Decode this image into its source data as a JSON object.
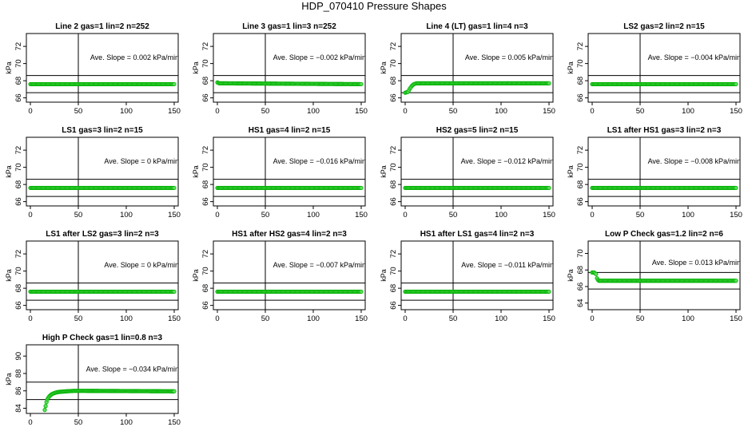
{
  "figure": {
    "title": "HDP_070410  Pressure Shapes"
  },
  "chart_data": [
    {
      "type": "scatter",
      "title": "Line 2 gas=1 lin=2 n=252",
      "ylabel": "kPa",
      "xlim": [
        0,
        150
      ],
      "ylim": [
        65.5,
        73.5
      ],
      "xticks": [
        0,
        50,
        100,
        150
      ],
      "yticks": [
        66,
        68,
        70,
        72
      ],
      "hlines": [
        68.6,
        66.6
      ],
      "vline": 50,
      "annotation": {
        "label": "Ave. Slope =",
        "value": "0.002",
        "unit": "kPa/min",
        "y": 70.7
      },
      "x": [
        0,
        150
      ],
      "y": [
        67.6,
        67.6
      ]
    },
    {
      "type": "scatter",
      "title": "Line 3 gas=1 lin=3 n=252",
      "ylabel": "kPa",
      "xlim": [
        0,
        150
      ],
      "ylim": [
        65.5,
        73.5
      ],
      "xticks": [
        0,
        50,
        100,
        150
      ],
      "yticks": [
        66,
        68,
        70,
        72
      ],
      "hlines": [
        68.6,
        66.6
      ],
      "vline": 50,
      "annotation": {
        "label": "Ave. Slope =",
        "value": "−0.002",
        "unit": "kPa/min",
        "y": 70.7
      },
      "x": [
        0,
        2,
        150
      ],
      "y": [
        67.8,
        67.7,
        67.6
      ]
    },
    {
      "type": "scatter",
      "title": "Line 4 (LT) gas=1 lin=4 n=3",
      "ylabel": "kPa",
      "xlim": [
        0,
        150
      ],
      "ylim": [
        65.5,
        73.5
      ],
      "xticks": [
        0,
        50,
        100,
        150
      ],
      "yticks": [
        66,
        68,
        70,
        72
      ],
      "hlines": [
        68.6,
        66.6
      ],
      "vline": 50,
      "annotation": {
        "label": "Ave. Slope =",
        "value": "0.005",
        "unit": "kPa/min",
        "y": 70.7
      },
      "x": [
        0,
        3,
        5,
        7,
        9,
        12,
        20,
        150
      ],
      "y": [
        66.6,
        66.7,
        67.1,
        67.4,
        67.6,
        67.7,
        67.7,
        67.7
      ]
    },
    {
      "type": "scatter",
      "title": "LS2 gas=2 lin=2 n=15",
      "ylabel": "kPa",
      "xlim": [
        0,
        150
      ],
      "ylim": [
        65.5,
        73.5
      ],
      "xticks": [
        0,
        50,
        100,
        150
      ],
      "yticks": [
        66,
        68,
        70,
        72
      ],
      "hlines": [
        68.6,
        66.6
      ],
      "vline": 50,
      "annotation": {
        "label": "Ave. Slope =",
        "value": "−0.004",
        "unit": "kPa/min",
        "y": 70.7
      },
      "x": [
        0,
        150
      ],
      "y": [
        67.6,
        67.6
      ]
    },
    {
      "type": "scatter",
      "title": "LS1 gas=3 lin=2 n=15",
      "ylabel": "kPa",
      "xlim": [
        0,
        150
      ],
      "ylim": [
        65.5,
        73.5
      ],
      "xticks": [
        0,
        50,
        100,
        150
      ],
      "yticks": [
        66,
        68,
        70,
        72
      ],
      "hlines": [
        68.6,
        66.6
      ],
      "vline": 50,
      "annotation": {
        "label": "Ave. Slope =",
        "value": "0",
        "unit": "kPa/min",
        "y": 70.7
      },
      "x": [
        0,
        150
      ],
      "y": [
        67.6,
        67.6
      ]
    },
    {
      "type": "scatter",
      "title": "HS1 gas=4 lin=2 n=15",
      "ylabel": "kPa",
      "xlim": [
        0,
        150
      ],
      "ylim": [
        65.5,
        73.5
      ],
      "xticks": [
        0,
        50,
        100,
        150
      ],
      "yticks": [
        66,
        68,
        70,
        72
      ],
      "hlines": [
        68.6,
        66.6
      ],
      "vline": 50,
      "annotation": {
        "label": "Ave. Slope =",
        "value": "−0.016",
        "unit": "kPa/min",
        "y": 70.7
      },
      "x": [
        0,
        150
      ],
      "y": [
        67.6,
        67.6
      ]
    },
    {
      "type": "scatter",
      "title": "HS2 gas=5 lin=2 n=15",
      "ylabel": "kPa",
      "xlim": [
        0,
        150
      ],
      "ylim": [
        65.5,
        73.5
      ],
      "xticks": [
        0,
        50,
        100,
        150
      ],
      "yticks": [
        66,
        68,
        70,
        72
      ],
      "hlines": [
        68.6,
        66.6
      ],
      "vline": 50,
      "annotation": {
        "label": "Ave. Slope =",
        "value": "−0.012",
        "unit": "kPa/min",
        "y": 70.7
      },
      "x": [
        0,
        150
      ],
      "y": [
        67.6,
        67.6
      ]
    },
    {
      "type": "scatter",
      "title": "LS1 after HS1 gas=3 lin=2 n=3",
      "ylabel": "kPa",
      "xlim": [
        0,
        150
      ],
      "ylim": [
        65.5,
        73.5
      ],
      "xticks": [
        0,
        50,
        100,
        150
      ],
      "yticks": [
        66,
        68,
        70,
        72
      ],
      "hlines": [
        68.6,
        66.6
      ],
      "vline": 50,
      "annotation": {
        "label": "Ave. Slope =",
        "value": "−0.008",
        "unit": "kPa/min",
        "y": 70.7
      },
      "x": [
        0,
        150
      ],
      "y": [
        67.6,
        67.6
      ]
    },
    {
      "type": "scatter",
      "title": "LS1 after LS2 gas=3 lin=2 n=3",
      "ylabel": "kPa",
      "xlim": [
        0,
        150
      ],
      "ylim": [
        65.5,
        73.5
      ],
      "xticks": [
        0,
        50,
        100,
        150
      ],
      "yticks": [
        66,
        68,
        70,
        72
      ],
      "hlines": [
        68.6,
        66.6
      ],
      "vline": 50,
      "annotation": {
        "label": "Ave. Slope =",
        "value": "0",
        "unit": "kPa/min",
        "y": 70.7
      },
      "x": [
        0,
        150
      ],
      "y": [
        67.6,
        67.6
      ]
    },
    {
      "type": "scatter",
      "title": "HS1 after HS2 gas=4 lin=2 n=3",
      "ylabel": "kPa",
      "xlim": [
        0,
        150
      ],
      "ylim": [
        65.5,
        73.5
      ],
      "xticks": [
        0,
        50,
        100,
        150
      ],
      "yticks": [
        66,
        68,
        70,
        72
      ],
      "hlines": [
        68.6,
        66.6
      ],
      "vline": 50,
      "annotation": {
        "label": "Ave. Slope =",
        "value": "−0.007",
        "unit": "kPa/min",
        "y": 70.7
      },
      "x": [
        0,
        150
      ],
      "y": [
        67.6,
        67.6
      ]
    },
    {
      "type": "scatter",
      "title": "HS1 after LS1 gas=4 lin=2 n=3",
      "ylabel": "kPa",
      "xlim": [
        0,
        150
      ],
      "ylim": [
        65.5,
        73.5
      ],
      "xticks": [
        0,
        50,
        100,
        150
      ],
      "yticks": [
        66,
        68,
        70,
        72
      ],
      "hlines": [
        68.6,
        66.6
      ],
      "vline": 50,
      "annotation": {
        "label": "Ave. Slope =",
        "value": "−0.011",
        "unit": "kPa/min",
        "y": 70.7
      },
      "x": [
        0,
        150
      ],
      "y": [
        67.6,
        67.6
      ]
    },
    {
      "type": "scatter",
      "title": "Low P Check gas=1.2 lin=2 n=6",
      "ylabel": "kPa",
      "xlim": [
        0,
        150
      ],
      "ylim": [
        63.2,
        71.5
      ],
      "xticks": [
        0,
        50,
        100,
        150
      ],
      "yticks": [
        64,
        66,
        68,
        70
      ],
      "hlines": [
        67.7,
        65.7
      ],
      "vline": 50,
      "annotation": {
        "label": "Ave. Slope =",
        "value": "0.013",
        "unit": "kPa/min",
        "y": 68.9
      },
      "x": [
        0,
        2,
        4,
        5,
        6,
        7,
        8,
        10,
        150
      ],
      "y": [
        67.7,
        67.7,
        67.5,
        67.0,
        66.8,
        66.7,
        66.7,
        66.7,
        66.7
      ]
    },
    {
      "type": "scatter",
      "title": "High P Check gas=1 lin=0.8 n=3",
      "ylabel": "kPa",
      "xlim": [
        0,
        150
      ],
      "ylim": [
        83.4,
        91.3
      ],
      "xticks": [
        0,
        50,
        100,
        150
      ],
      "yticks": [
        84,
        86,
        88,
        90
      ],
      "hlines": [
        87.0,
        85.0
      ],
      "vline": 50,
      "annotation": {
        "label": "Ave. Slope =",
        "value": "−0.034",
        "unit": "kPa/min",
        "y": 88.5
      },
      "x": [
        15,
        16,
        17,
        18,
        20,
        22,
        25,
        28,
        32,
        38,
        45,
        55,
        150
      ],
      "y": [
        83.8,
        84.3,
        84.8,
        85.1,
        85.4,
        85.6,
        85.75,
        85.85,
        85.9,
        85.95,
        86.0,
        86.0,
        85.95
      ]
    }
  ]
}
